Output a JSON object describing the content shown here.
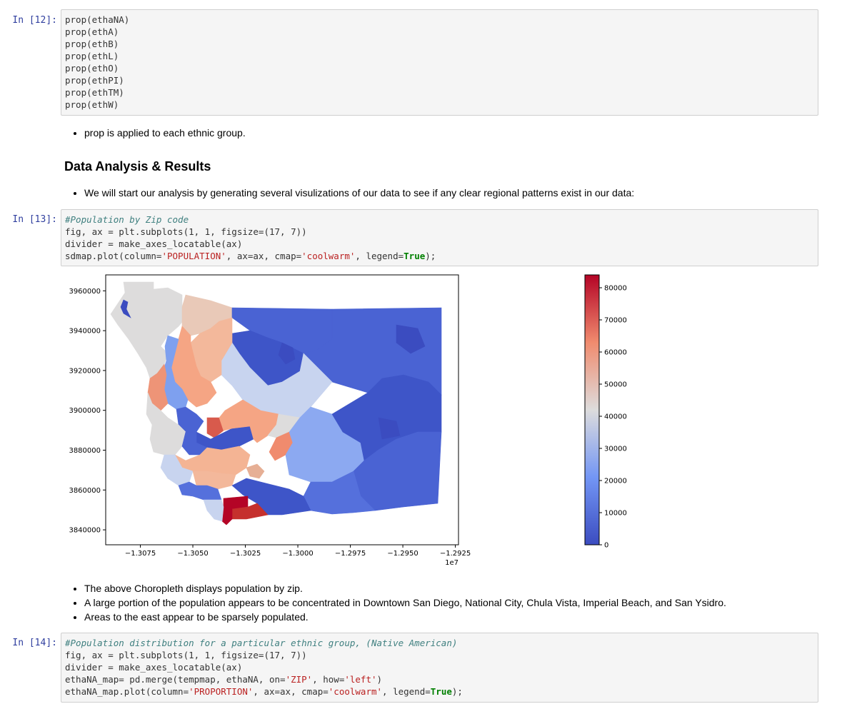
{
  "cells": [
    {
      "prompt": "In [12]:",
      "lines": [
        [
          [
            "p",
            "prop(ethaNA)"
          ]
        ],
        [
          [
            "p",
            "prop(ethA)"
          ]
        ],
        [
          [
            "p",
            "prop(ethB)"
          ]
        ],
        [
          [
            "p",
            "prop(ethL)"
          ]
        ],
        [
          [
            "p",
            "prop(ethO)"
          ]
        ],
        [
          [
            "p",
            "prop(ethPI)"
          ]
        ],
        [
          [
            "p",
            "prop(ethTM)"
          ]
        ],
        [
          [
            "p",
            "prop(ethW)"
          ]
        ]
      ]
    },
    {
      "prompt": "In [13]:",
      "lines": [
        [
          [
            "c",
            "#Population by Zip code"
          ]
        ],
        [
          [
            "p",
            "fig, ax = plt.subplots(1, 1, figsize=(17, 7))"
          ]
        ],
        [
          [
            "p",
            "divider = make_axes_locatable(ax)"
          ]
        ],
        [
          [
            "p",
            "sdmap.plot(column="
          ],
          [
            "s",
            "'POPULATION'"
          ],
          [
            "p",
            ", ax=ax, cmap="
          ],
          [
            "s",
            "'coolwarm'"
          ],
          [
            "p",
            ", legend="
          ],
          [
            "k",
            "True"
          ],
          [
            "p",
            ");"
          ]
        ]
      ]
    },
    {
      "prompt": "In [14]:",
      "lines": [
        [
          [
            "c",
            "#Population distribution for a particular ethnic group, (Native American)"
          ]
        ],
        [
          [
            "p",
            "fig, ax = plt.subplots(1, 1, figsize=(17, 7))"
          ]
        ],
        [
          [
            "p",
            "divider = make_axes_locatable(ax)"
          ]
        ],
        [
          [
            "p",
            "ethaNA_map= pd.merge(tempmap, ethaNA, on="
          ],
          [
            "s",
            "'ZIP'"
          ],
          [
            "p",
            ", how="
          ],
          [
            "s",
            "'left'"
          ],
          [
            "p",
            ")"
          ]
        ],
        [
          [
            "p",
            "ethaNA_map.plot(column="
          ],
          [
            "s",
            "'PROPORTION'"
          ],
          [
            "p",
            ", ax=ax, cmap="
          ],
          [
            "s",
            "'coolwarm'"
          ],
          [
            "p",
            ", legend="
          ],
          [
            "k",
            "True"
          ],
          [
            "p",
            ");"
          ]
        ]
      ]
    }
  ],
  "markdown": {
    "bullet_prop": "prop is applied to each ethnic group.",
    "heading": "Data Analysis & Results",
    "bullet_start": "We will start our analysis by generating several visulizations of our data to see if any clear regional patterns exist in our data:",
    "bullets_after": [
      "The above Choropleth displays population by zip.",
      "A large portion of the population appears to be concentrated in Downtown San Diego, National City, Chula Vista, Imperial Beach, and San Ysidro.",
      "Areas to the east appear to be sparsely populated."
    ]
  },
  "colors": {
    "prompt": "#303f9f",
    "comment": "#408080",
    "string": "#ba2121",
    "keyword": "#008000"
  },
  "chart_data": {
    "type": "heatmap",
    "description_kind": "choropleth",
    "cmap": "coolwarm",
    "x_ticks": [
      "−1.3075",
      "−1.3050",
      "−1.3025",
      "−1.3000",
      "−1.2975",
      "−1.2950",
      "−1.2925"
    ],
    "x_tick_values": [
      -1.3075,
      -1.305,
      -1.3025,
      -1.3,
      -1.2975,
      -1.295,
      -1.2925
    ],
    "x_offset": "1e7",
    "xlim": [
      -1.30915,
      -1.29235
    ],
    "y_ticks": [
      "3960000",
      "3940000",
      "3920000",
      "3900000",
      "3880000",
      "3860000",
      "3840000"
    ],
    "y_tick_values": [
      3960000,
      3940000,
      3920000,
      3900000,
      3880000,
      3860000,
      3840000
    ],
    "ylim": [
      3832500,
      3968000
    ],
    "colorbar_ticks": [
      "80000",
      "70000",
      "60000",
      "50000",
      "40000",
      "30000",
      "20000",
      "10000",
      "0"
    ],
    "colorbar_tick_values": [
      80000,
      70000,
      60000,
      50000,
      40000,
      30000,
      20000,
      10000,
      0
    ],
    "colorbar_range": [
      0,
      84000
    ]
  }
}
